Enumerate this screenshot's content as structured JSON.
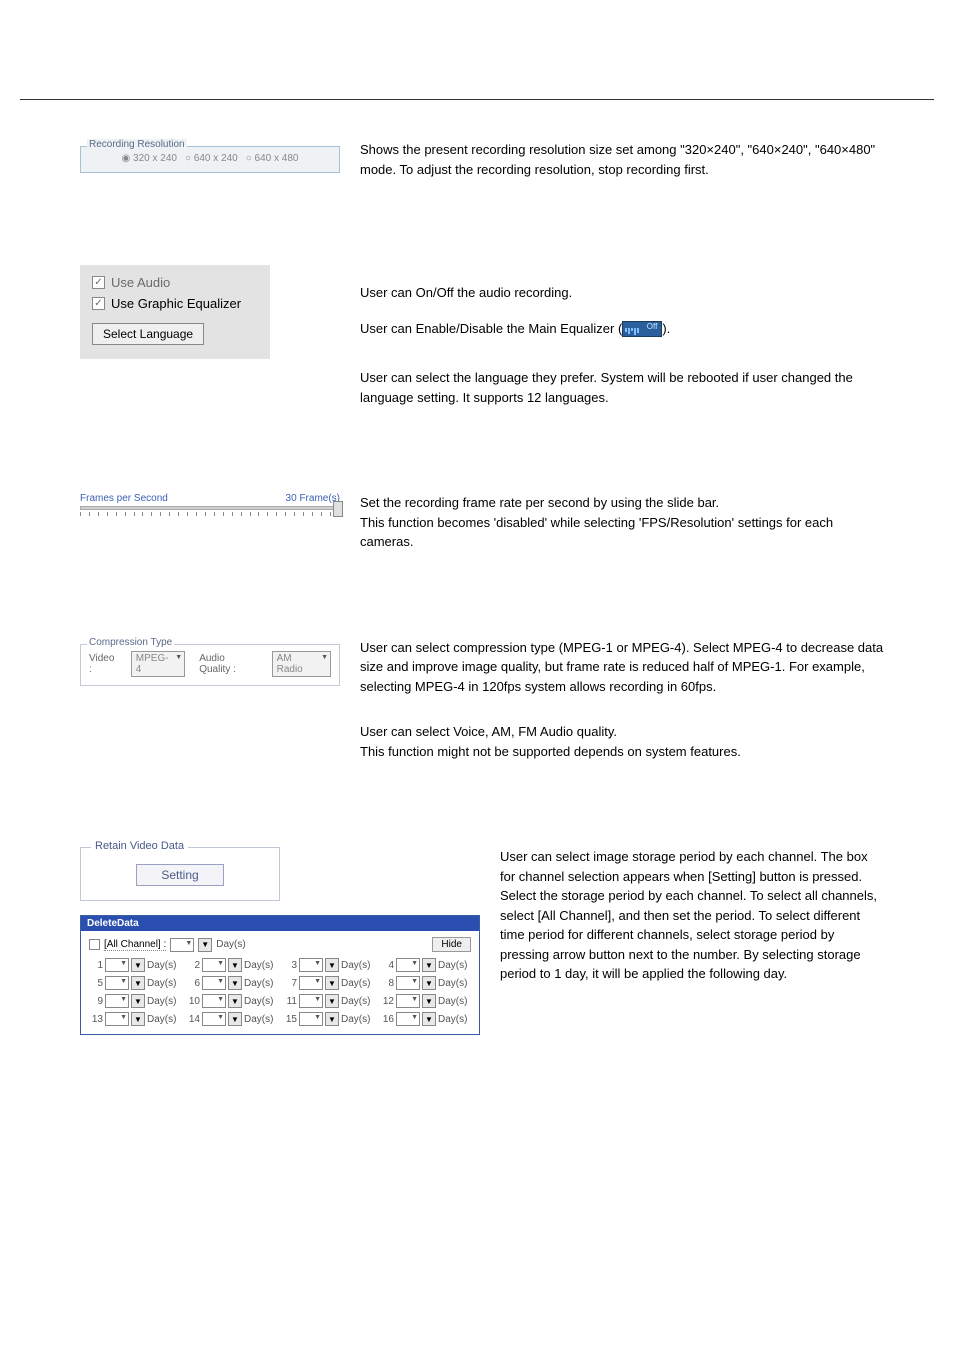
{
  "typography": {
    "body_font": "Arial, sans-serif",
    "body_fontsize_pt": 10,
    "color_text": "#000000",
    "color_muted": "#6a6a6a",
    "color_blue_label": "#3a5fb2",
    "color_fieldset_border": "#a6c1d6",
    "color_fieldset_bg": "#eef2f5",
    "color_dialog_title_bg": "#2a4fb0",
    "color_dialog_title_text": "#ffffff",
    "color_eq_bg": "#2a5f9e",
    "color_eq_bar": "#7fbdff"
  },
  "recording_resolution": {
    "group_label": "Recording Resolution",
    "options": [
      "320 x 240",
      "640 x 240",
      "640 x 480"
    ],
    "selected_index": 0,
    "description": "Shows the present recording resolution size set among \"320×240\", \"640×240\", \"640×480\" mode. To adjust the recording resolution, stop recording first."
  },
  "audio_settings": {
    "use_audio": {
      "label": "Use Audio",
      "checked": true,
      "enabled": false
    },
    "use_equalizer": {
      "label": "Use Graphic Equalizer",
      "checked": true,
      "enabled": true
    },
    "select_language_btn": "Select Language",
    "desc_audio": "User can On/Off the audio recording.",
    "desc_eq_prefix": "User can Enable/Disable the Main Equalizer (",
    "desc_eq_suffix": ").",
    "desc_lang": "User can select the language they prefer. System will be rebooted if user changed the language setting. It supports 12 languages.",
    "eq_toggle_label": "Off"
  },
  "fps": {
    "label": "Frames per Second",
    "value_label": "30 Frame(s)",
    "min": 1,
    "max": 30,
    "value": 30,
    "tick_count": 30,
    "desc": "Set the recording frame rate per second by using the slide bar.\nThis function becomes 'disabled' while selecting 'FPS/Resolution' settings for each cameras."
  },
  "compression": {
    "group_label": "Compression Type",
    "video_label": "Video :",
    "video_value": "MPEG-4",
    "audio_label": "Audio Quality :",
    "audio_value": "AM Radio",
    "desc_video": "User can select compression type (MPEG-1 or MPEG-4). Select MPEG-4 to decrease data size and improve image quality, but frame rate is reduced half of MPEG-1. For example, selecting MPEG-4 in 120fps system allows recording in 60fps.",
    "desc_audio": "User can select Voice, AM, FM Audio quality.\nThis function might not be supported depends on system features."
  },
  "retain": {
    "group_label": "Retain Video Data",
    "button_label": "Setting",
    "desc": "User can select image storage period by each channel. The box for channel selection appears when [Setting] button is pressed. Select the storage period by each channel. To select all channels, select [All Channel], and then set the period. To select different time period for different channels, select storage period by pressing arrow button next to the number. By selecting storage period to 1 day, it will be applied the following day."
  },
  "delete_data": {
    "title": "DeleteData",
    "all_channel_label": "[All Channel] :",
    "all_channel_checked": false,
    "all_value": "--",
    "days_suffix": "Day(s)",
    "hide_btn": "Hide",
    "channels": [
      {
        "n": 1,
        "v": "--"
      },
      {
        "n": 2,
        "v": "--"
      },
      {
        "n": 3,
        "v": "--"
      },
      {
        "n": 4,
        "v": "--"
      },
      {
        "n": 5,
        "v": "--"
      },
      {
        "n": 6,
        "v": "--"
      },
      {
        "n": 7,
        "v": "--"
      },
      {
        "n": 8,
        "v": "--"
      },
      {
        "n": 9,
        "v": "--"
      },
      {
        "n": 10,
        "v": "--"
      },
      {
        "n": 11,
        "v": "--"
      },
      {
        "n": 12,
        "v": "--"
      },
      {
        "n": 13,
        "v": "--"
      },
      {
        "n": 14,
        "v": "--"
      },
      {
        "n": 15,
        "v": "--"
      },
      {
        "n": 16,
        "v": "--"
      }
    ]
  }
}
